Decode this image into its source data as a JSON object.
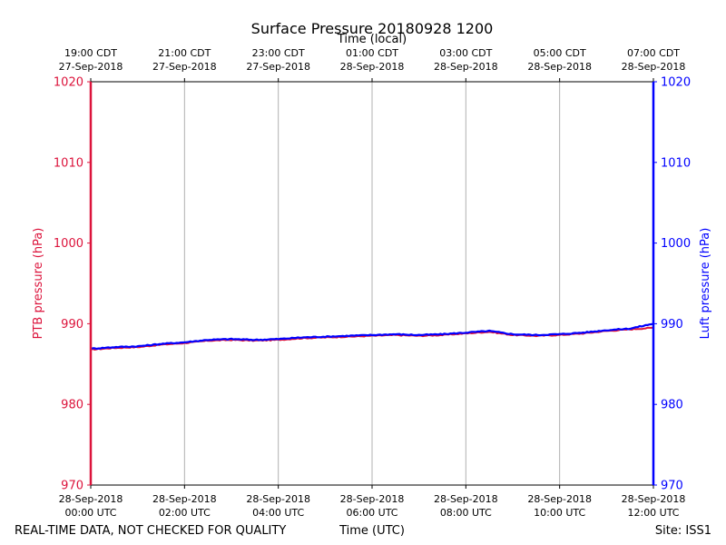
{
  "chart_data": {
    "type": "line",
    "title": "Surface Pressure 20180928 1200",
    "top_xlabel": "Time (local)",
    "xlabel": "Time (UTC)",
    "ylabel_left": "PTB pressure (hPa)",
    "ylabel_right": "Luft pressure (hPa)",
    "ylim": [
      970,
      1020
    ],
    "y_ticks": [
      970,
      980,
      990,
      1000,
      1010,
      1020
    ],
    "xlim_hours_utc": [
      0,
      12
    ],
    "grid": "vertical",
    "bottom_ticks": [
      {
        "date": "28-Sep-2018",
        "time": "00:00 UTC"
      },
      {
        "date": "28-Sep-2018",
        "time": "02:00 UTC"
      },
      {
        "date": "28-Sep-2018",
        "time": "04:00 UTC"
      },
      {
        "date": "28-Sep-2018",
        "time": "06:00 UTC"
      },
      {
        "date": "28-Sep-2018",
        "time": "08:00 UTC"
      },
      {
        "date": "28-Sep-2018",
        "time": "10:00 UTC"
      },
      {
        "date": "28-Sep-2018",
        "time": "12:00 UTC"
      }
    ],
    "top_ticks": [
      {
        "time": "19:00 CDT",
        "date": "27-Sep-2018"
      },
      {
        "time": "21:00 CDT",
        "date": "27-Sep-2018"
      },
      {
        "time": "23:00 CDT",
        "date": "27-Sep-2018"
      },
      {
        "time": "01:00 CDT",
        "date": "28-Sep-2018"
      },
      {
        "time": "03:00 CDT",
        "date": "28-Sep-2018"
      },
      {
        "time": "05:00 CDT",
        "date": "28-Sep-2018"
      },
      {
        "time": "07:00 CDT",
        "date": "28-Sep-2018"
      }
    ],
    "x_hours_utc": [
      0,
      0.5,
      1,
      1.5,
      2,
      2.5,
      3,
      3.5,
      4,
      4.5,
      5,
      5.5,
      6,
      6.5,
      7,
      7.5,
      8,
      8.5,
      9,
      9.5,
      10,
      10.5,
      11,
      11.5,
      12
    ],
    "series": [
      {
        "name": "PTB pressure",
        "color": "#dc143c",
        "axis": "left",
        "values": [
          986.8,
          987.0,
          987.1,
          987.4,
          987.6,
          987.9,
          988.0,
          987.9,
          988.0,
          988.2,
          988.3,
          988.4,
          988.5,
          988.6,
          988.5,
          988.6,
          988.8,
          989.0,
          988.6,
          988.5,
          988.6,
          988.8,
          989.1,
          989.3,
          989.5
        ]
      },
      {
        "name": "Luft pressure",
        "color": "#0000ff",
        "axis": "right",
        "values": [
          986.9,
          987.1,
          987.2,
          987.5,
          987.7,
          988.0,
          988.1,
          988.0,
          988.1,
          988.3,
          988.4,
          988.5,
          988.6,
          988.7,
          988.6,
          988.7,
          988.9,
          989.1,
          988.7,
          988.6,
          988.7,
          988.9,
          989.2,
          989.4,
          990.0
        ]
      }
    ]
  },
  "footer": {
    "left": "REAL-TIME DATA, NOT CHECKED FOR QUALITY",
    "center": "Time (UTC)",
    "right": "Site: ISS1"
  }
}
